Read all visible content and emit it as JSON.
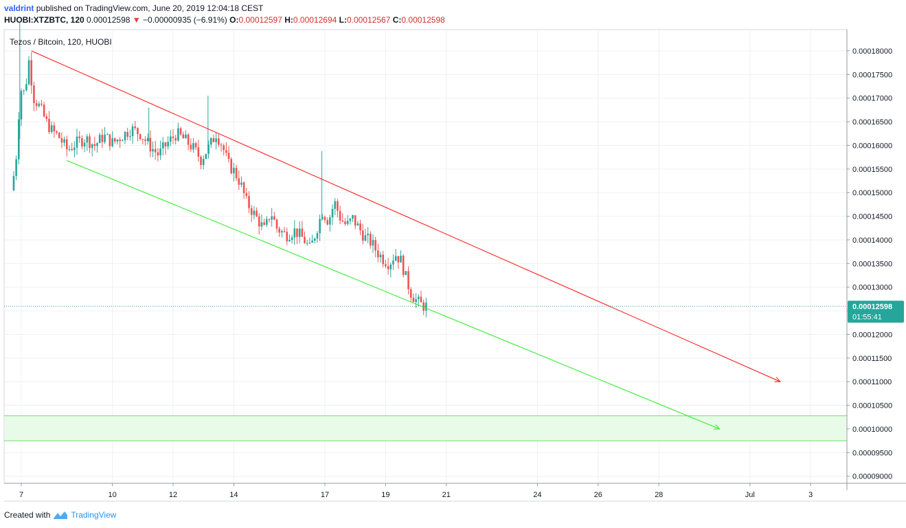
{
  "header": {
    "publisher": "valdrint",
    "published_text": "published on TradingView.com, June 20, 2019 12:04:18 CEST",
    "symbol": "HUOBI:XTZBTC, 120",
    "last": "0.00012598",
    "change_arrow": "▼",
    "change": "−0.00000935 (−6.91%)",
    "o_label": "O:",
    "o_value": "0.00012597",
    "h_label": "H:",
    "h_value": "0.00012694",
    "l_label": "L:",
    "l_value": "0.00012567",
    "c_label": "C:",
    "c_value": "0.00012598"
  },
  "footer": {
    "created_with": "Created with",
    "brand": "TradingView"
  },
  "colors": {
    "up": "#26a69a",
    "down": "#ef5350",
    "red_line": "#ff2222",
    "green_line": "#33ee33",
    "zone": "#e8fbe8",
    "price_tag": "#26a69a"
  },
  "chart_data": {
    "type": "candlestick",
    "title": "Tezos / Bitcoin, 120, HUOBI",
    "ylim": [
      8.85e-05,
      0.0001845
    ],
    "y_ticks": [
      "0.00018000",
      "0.00017500",
      "0.00017000",
      "0.00016500",
      "0.00016000",
      "0.00015500",
      "0.00015000",
      "0.00014500",
      "0.00014000",
      "0.00013500",
      "0.00013000",
      "0.00012500",
      "0.00012000",
      "0.00011500",
      "0.00011000",
      "0.00010500",
      "0.00010000",
      "0.00009500",
      "0.00009000"
    ],
    "x_ticks": [
      {
        "label": "7",
        "day": 7
      },
      {
        "label": "10",
        "day": 10
      },
      {
        "label": "12",
        "day": 12
      },
      {
        "label": "14",
        "day": 14
      },
      {
        "label": "17",
        "day": 17
      },
      {
        "label": "19",
        "day": 19
      },
      {
        "label": "21",
        "day": 21
      },
      {
        "label": "24",
        "day": 24
      },
      {
        "label": "26",
        "day": 26
      },
      {
        "label": "28",
        "day": 28
      },
      {
        "label": "Jul",
        "day": 31
      },
      {
        "label": "3",
        "day": 33
      }
    ],
    "current_price": {
      "value": 0.00012598,
      "label": "0.00012598",
      "countdown": "01:55:41"
    },
    "upper_trendline": {
      "from": [
        7.33,
        0.00018
      ],
      "to": [
        32.0,
        0.00011
      ]
    },
    "lower_trendline": {
      "from": [
        8.5,
        0.0001568
      ],
      "to": [
        30.0,
        0.0001
      ]
    },
    "support_zone": {
      "top": 0.0001028,
      "bottom": 9.75e-05
    },
    "price_path": [
      [
        6.75,
        0.0001505
      ],
      [
        6.9,
        0.000156
      ],
      [
        7.05,
        0.000172
      ],
      [
        7.2,
        0.000171
      ],
      [
        7.33,
        0.000178
      ],
      [
        7.5,
        0.00017
      ],
      [
        7.7,
        0.000168
      ],
      [
        7.9,
        0.000165
      ],
      [
        8.1,
        0.000163
      ],
      [
        8.3,
        0.000162
      ],
      [
        8.6,
        0.000159
      ],
      [
        8.9,
        0.0001605
      ],
      [
        9.2,
        0.0001615
      ],
      [
        9.5,
        0.00016
      ],
      [
        9.8,
        0.000162
      ],
      [
        10.1,
        0.0001605
      ],
      [
        10.4,
        0.000162
      ],
      [
        10.7,
        0.0001635
      ],
      [
        11.0,
        0.0001625
      ],
      [
        11.3,
        0.00016
      ],
      [
        11.6,
        0.000158
      ],
      [
        11.9,
        0.0001605
      ],
      [
        12.2,
        0.0001625
      ],
      [
        12.5,
        0.000161
      ],
      [
        12.8,
        0.000159
      ],
      [
        13.0,
        0.000157
      ],
      [
        13.3,
        0.00016
      ],
      [
        13.5,
        0.0001625
      ],
      [
        13.7,
        0.00016
      ],
      [
        13.9,
        0.000156
      ],
      [
        14.1,
        0.0001545
      ],
      [
        14.3,
        0.000152
      ],
      [
        14.5,
        0.000148
      ],
      [
        14.7,
        0.000146
      ],
      [
        14.9,
        0.000144
      ],
      [
        15.1,
        0.000142
      ],
      [
        15.3,
        0.000146
      ],
      [
        15.5,
        0.0001425
      ],
      [
        15.8,
        0.000141
      ],
      [
        16.1,
        0.000142
      ],
      [
        16.4,
        0.00014
      ],
      [
        16.6,
        0.000138
      ],
      [
        16.8,
        0.000142
      ],
      [
        17.0,
        0.000146
      ],
      [
        17.2,
        0.000144
      ],
      [
        17.4,
        0.000148
      ],
      [
        17.6,
        0.0001445
      ],
      [
        17.8,
        0.000143
      ],
      [
        18.0,
        0.0001445
      ],
      [
        18.2,
        0.0001425
      ],
      [
        18.4,
        0.0001405
      ],
      [
        18.6,
        0.0001395
      ],
      [
        18.8,
        0.0001375
      ],
      [
        19.0,
        0.000136
      ],
      [
        19.2,
        0.000135
      ],
      [
        19.4,
        0.000137
      ],
      [
        19.6,
        0.0001355
      ],
      [
        19.75,
        0.000132
      ],
      [
        19.9,
        0.000129
      ],
      [
        20.05,
        0.0001275
      ],
      [
        20.2,
        0.0001265
      ],
      [
        20.35,
        0.000126
      ]
    ],
    "wick_spikes": [
      {
        "x": 6.95,
        "high": 0.000186
      },
      {
        "x": 13.15,
        "high": 0.0001705
      },
      {
        "x": 16.9,
        "high": 0.0001588
      },
      {
        "x": 11.2,
        "high": 0.000168
      }
    ]
  }
}
